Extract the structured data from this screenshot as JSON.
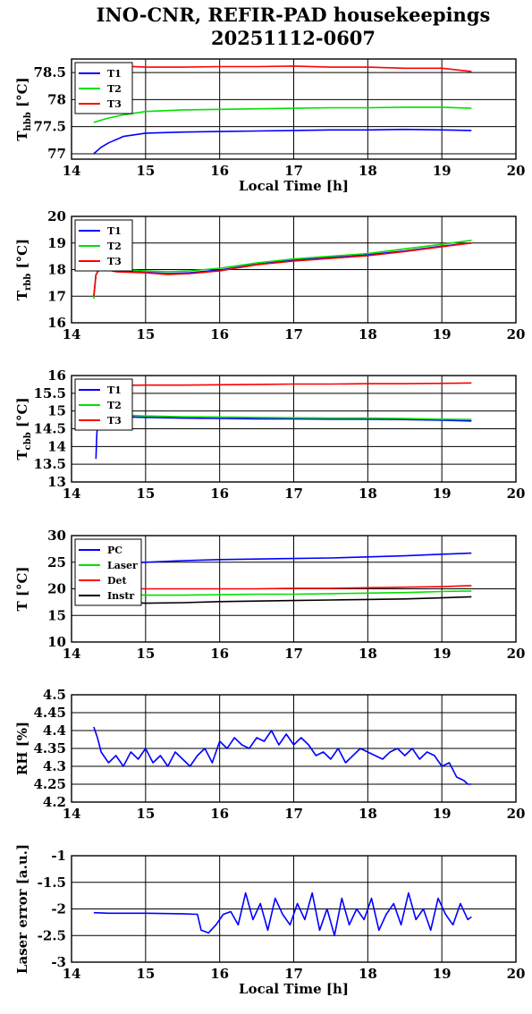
{
  "title_line1": "INO-CNR, REFIR-PAD housekeepings",
  "title_line2": "20251112-0607",
  "chart_data": [
    {
      "type": "line",
      "ylabel": "T_hbb [°C]",
      "ylabel_main": "T",
      "ylabel_sub": "hbb",
      "ylabel_rest": " [°C]",
      "xlabel": "Local Time [h]",
      "xlim": [
        14,
        20
      ],
      "ylim": [
        76.9,
        78.75
      ],
      "x_ticks": [
        "14",
        "15",
        "16",
        "17",
        "18",
        "19",
        "20"
      ],
      "y_ticks": [
        77,
        77.5,
        78,
        78.5
      ],
      "y_tick_labels": [
        "77",
        "77.5",
        "78",
        "78.5"
      ],
      "grid": true,
      "legend_position": "top-left",
      "series": [
        {
          "name": "T1",
          "color": "#0000ff",
          "x": [
            14.3,
            14.4,
            14.5,
            14.7,
            15.0,
            15.5,
            16.0,
            16.5,
            17.0,
            17.5,
            18.0,
            18.5,
            19.0,
            19.4
          ],
          "y": [
            77.0,
            77.12,
            77.2,
            77.32,
            77.38,
            77.4,
            77.41,
            77.42,
            77.43,
            77.44,
            77.44,
            77.45,
            77.44,
            77.43
          ]
        },
        {
          "name": "T2",
          "color": "#00e000",
          "x": [
            14.3,
            14.4,
            14.5,
            14.7,
            15.0,
            15.5,
            16.0,
            16.5,
            17.0,
            17.5,
            18.0,
            18.5,
            19.0,
            19.4
          ],
          "y": [
            77.58,
            77.62,
            77.66,
            77.72,
            77.78,
            77.81,
            77.82,
            77.83,
            77.84,
            77.85,
            77.85,
            77.86,
            77.86,
            77.84
          ]
        },
        {
          "name": "T3",
          "color": "#ff0000",
          "x": [
            14.3,
            14.5,
            14.7,
            15.0,
            15.5,
            16.0,
            16.5,
            17.0,
            17.5,
            18.0,
            18.5,
            19.0,
            19.4
          ],
          "y": [
            78.6,
            78.62,
            78.62,
            78.6,
            78.6,
            78.61,
            78.61,
            78.62,
            78.6,
            78.6,
            78.58,
            78.58,
            78.52
          ]
        }
      ]
    },
    {
      "type": "line",
      "ylabel": "T_rbb [°C]",
      "ylabel_main": "T",
      "ylabel_sub": "rbb",
      "ylabel_rest": " [°C]",
      "xlabel": "",
      "xlim": [
        14,
        20
      ],
      "ylim": [
        16,
        20
      ],
      "x_ticks": [
        "14",
        "15",
        "16",
        "17",
        "18",
        "19",
        "20"
      ],
      "y_ticks": [
        16,
        17,
        18,
        19,
        20
      ],
      "y_tick_labels": [
        "16",
        "17",
        "18",
        "19",
        "20"
      ],
      "grid": true,
      "legend_position": "top-left",
      "series": [
        {
          "name": "T1",
          "color": "#0000ff",
          "x": [
            14.3,
            14.33,
            14.38,
            14.6,
            15.0,
            15.3,
            15.6,
            16.0,
            16.5,
            17.0,
            17.5,
            18.0,
            18.5,
            19.0,
            19.4
          ],
          "y": [
            17.0,
            17.8,
            18.05,
            17.95,
            17.9,
            17.85,
            17.88,
            17.98,
            18.2,
            18.35,
            18.45,
            18.55,
            18.7,
            18.88,
            19.0
          ]
        },
        {
          "name": "T2",
          "color": "#00e000",
          "x": [
            14.3,
            14.33,
            14.38,
            14.6,
            15.0,
            15.3,
            15.6,
            16.0,
            16.5,
            17.0,
            17.5,
            18.0,
            18.5,
            19.0,
            19.4
          ],
          "y": [
            16.9,
            17.8,
            18.05,
            18.0,
            17.95,
            17.92,
            17.95,
            18.05,
            18.25,
            18.4,
            18.5,
            18.6,
            18.78,
            18.95,
            19.1
          ]
        },
        {
          "name": "T3",
          "color": "#ff0000",
          "x": [
            14.3,
            14.33,
            14.38,
            14.6,
            15.0,
            15.3,
            15.6,
            16.0,
            16.5,
            17.0,
            17.5,
            18.0,
            18.5,
            19.0,
            19.4
          ],
          "y": [
            17.0,
            17.8,
            18.05,
            17.92,
            17.88,
            17.82,
            17.85,
            17.95,
            18.18,
            18.32,
            18.42,
            18.52,
            18.68,
            18.86,
            19.0
          ]
        }
      ]
    },
    {
      "type": "line",
      "ylabel": "T_cbb [°C]",
      "ylabel_main": "T",
      "ylabel_sub": "cbb",
      "ylabel_rest": " [°C]",
      "xlabel": "",
      "xlim": [
        14,
        20
      ],
      "ylim": [
        13,
        16
      ],
      "x_ticks": [
        "14",
        "15",
        "16",
        "17",
        "18",
        "19",
        "20"
      ],
      "y_ticks": [
        13,
        13.5,
        14,
        14.5,
        15,
        15.5,
        16
      ],
      "y_tick_labels": [
        "13",
        "13.5",
        "14",
        "14.5",
        "15",
        "15.5",
        "16"
      ],
      "grid": true,
      "legend_position": "top-left",
      "series": [
        {
          "name": "T1",
          "color": "#0000ff",
          "x": [
            14.33,
            14.34,
            14.36,
            14.5,
            15.0,
            15.5,
            16.0,
            16.5,
            17.0,
            17.5,
            18.0,
            18.5,
            19.0,
            19.4
          ],
          "y": [
            13.65,
            14.3,
            14.9,
            14.85,
            14.82,
            14.8,
            14.79,
            14.78,
            14.78,
            14.77,
            14.77,
            14.76,
            14.74,
            14.72
          ]
        },
        {
          "name": "T2",
          "color": "#00e000",
          "x": [
            14.5,
            15.0,
            15.5,
            16.0,
            16.5,
            17.0,
            17.5,
            18.0,
            18.5,
            19.0,
            19.4
          ],
          "y": [
            14.9,
            14.86,
            14.84,
            14.83,
            14.82,
            14.81,
            14.8,
            14.8,
            14.79,
            14.77,
            14.76
          ]
        },
        {
          "name": "T3",
          "color": "#ff0000",
          "x": [
            14.5,
            15.0,
            15.5,
            16.0,
            16.5,
            17.0,
            17.5,
            18.0,
            18.5,
            19.0,
            19.4
          ],
          "y": [
            15.72,
            15.73,
            15.73,
            15.74,
            15.75,
            15.76,
            15.76,
            15.77,
            15.77,
            15.78,
            15.79
          ]
        }
      ]
    },
    {
      "type": "line",
      "ylabel": "T [°C]",
      "ylabel_main": "T [°C]",
      "ylabel_sub": "",
      "ylabel_rest": "",
      "xlabel": "",
      "xlim": [
        14,
        20
      ],
      "ylim": [
        10,
        30
      ],
      "x_ticks": [
        "14",
        "15",
        "16",
        "17",
        "18",
        "19",
        "20"
      ],
      "y_ticks": [
        10,
        15,
        20,
        25,
        30
      ],
      "y_tick_labels": [
        "10",
        "15",
        "20",
        "25",
        "30"
      ],
      "grid": true,
      "legend_position": "top-left",
      "series": [
        {
          "name": "PC",
          "color": "#0000ff",
          "x": [
            14.3,
            15.0,
            15.5,
            16.0,
            16.5,
            17.0,
            17.5,
            18.0,
            18.5,
            19.0,
            19.4
          ],
          "y": [
            24.6,
            25.0,
            25.3,
            25.5,
            25.6,
            25.7,
            25.8,
            26.0,
            26.2,
            26.5,
            26.7
          ]
        },
        {
          "name": "Laser",
          "color": "#00e000",
          "x": [
            14.3,
            15.0,
            15.5,
            16.0,
            16.5,
            17.0,
            17.5,
            18.0,
            18.5,
            19.0,
            19.4
          ],
          "y": [
            19.3,
            18.8,
            18.8,
            18.9,
            19.0,
            19.0,
            19.1,
            19.2,
            19.3,
            19.5,
            19.6
          ]
        },
        {
          "name": "Det",
          "color": "#ff0000",
          "x": [
            14.3,
            15.0,
            15.5,
            16.0,
            16.5,
            17.0,
            17.5,
            18.0,
            18.5,
            19.0,
            19.4
          ],
          "y": [
            20.0,
            20.0,
            20.0,
            20.0,
            20.0,
            20.1,
            20.1,
            20.2,
            20.3,
            20.4,
            20.6
          ]
        },
        {
          "name": "Instr",
          "color": "#000000",
          "x": [
            14.3,
            14.7,
            15.0,
            15.5,
            16.0,
            16.5,
            17.0,
            17.5,
            18.0,
            18.5,
            19.0,
            19.4
          ],
          "y": [
            17.8,
            17.5,
            17.3,
            17.4,
            17.6,
            17.7,
            17.8,
            17.9,
            18.0,
            18.1,
            18.3,
            18.5
          ]
        }
      ]
    },
    {
      "type": "line",
      "ylabel": "RH [%]",
      "ylabel_main": "RH [%]",
      "ylabel_sub": "",
      "ylabel_rest": "",
      "xlabel": "",
      "xlim": [
        14,
        20
      ],
      "ylim": [
        4.2,
        4.5
      ],
      "x_ticks": [
        "14",
        "15",
        "16",
        "17",
        "18",
        "19",
        "20"
      ],
      "y_ticks": [
        4.2,
        4.25,
        4.3,
        4.35,
        4.4,
        4.45,
        4.5
      ],
      "y_tick_labels": [
        "4.2",
        "4.25",
        "4.3",
        "4.35",
        "4.4",
        "4.45",
        "4.5"
      ],
      "grid": true,
      "legend_position": "none",
      "series": [
        {
          "name": "",
          "color": "#0000ff",
          "x": [
            14.3,
            14.35,
            14.4,
            14.5,
            14.6,
            14.7,
            14.8,
            14.9,
            15.0,
            15.1,
            15.2,
            15.3,
            15.4,
            15.5,
            15.6,
            15.7,
            15.8,
            15.9,
            16.0,
            16.1,
            16.2,
            16.3,
            16.4,
            16.5,
            16.6,
            16.7,
            16.8,
            16.9,
            17.0,
            17.1,
            17.2,
            17.3,
            17.4,
            17.5,
            17.6,
            17.7,
            17.8,
            17.9,
            18.0,
            18.1,
            18.2,
            18.3,
            18.4,
            18.5,
            18.6,
            18.7,
            18.8,
            18.9,
            19.0,
            19.1,
            19.2,
            19.3,
            19.35,
            19.4
          ],
          "y": [
            4.41,
            4.38,
            4.34,
            4.31,
            4.33,
            4.3,
            4.34,
            4.32,
            4.35,
            4.31,
            4.33,
            4.3,
            4.34,
            4.32,
            4.3,
            4.33,
            4.35,
            4.31,
            4.37,
            4.35,
            4.38,
            4.36,
            4.35,
            4.38,
            4.37,
            4.4,
            4.36,
            4.39,
            4.36,
            4.38,
            4.36,
            4.33,
            4.34,
            4.32,
            4.35,
            4.31,
            4.33,
            4.35,
            4.34,
            4.33,
            4.32,
            4.34,
            4.35,
            4.33,
            4.35,
            4.32,
            4.34,
            4.33,
            4.3,
            4.31,
            4.27,
            4.26,
            4.25,
            4.25
          ]
        }
      ]
    },
    {
      "type": "line",
      "ylabel": "Laser error [a.u.]",
      "ylabel_main": "Laser error [a.u.]",
      "ylabel_sub": "",
      "ylabel_rest": "",
      "xlabel": "Local Time [h]",
      "xlim": [
        14,
        20
      ],
      "ylim": [
        -3,
        -1
      ],
      "x_ticks": [
        "14",
        "15",
        "16",
        "17",
        "18",
        "19",
        "20"
      ],
      "y_ticks": [
        -3,
        -2.5,
        -2,
        -1.5,
        -1
      ],
      "y_tick_labels": [
        "-3",
        "-2.5",
        "-2",
        "-1.5",
        "-1"
      ],
      "grid": true,
      "legend_position": "none",
      "series": [
        {
          "name": "",
          "color": "#0000ff",
          "x": [
            14.3,
            14.5,
            15.0,
            15.5,
            15.7,
            15.75,
            15.85,
            15.95,
            16.05,
            16.15,
            16.25,
            16.35,
            16.45,
            16.55,
            16.65,
            16.75,
            16.85,
            16.95,
            17.05,
            17.15,
            17.25,
            17.35,
            17.45,
            17.55,
            17.65,
            17.75,
            17.85,
            17.95,
            18.05,
            18.15,
            18.25,
            18.35,
            18.45,
            18.55,
            18.65,
            18.75,
            18.85,
            18.95,
            19.05,
            19.15,
            19.25,
            19.35,
            19.4
          ],
          "y": [
            -2.07,
            -2.08,
            -2.08,
            -2.09,
            -2.1,
            -2.4,
            -2.45,
            -2.3,
            -2.1,
            -2.05,
            -2.3,
            -1.7,
            -2.2,
            -1.9,
            -2.4,
            -1.8,
            -2.1,
            -2.3,
            -1.9,
            -2.2,
            -1.7,
            -2.4,
            -2.0,
            -2.5,
            -1.8,
            -2.3,
            -2.0,
            -2.2,
            -1.8,
            -2.4,
            -2.1,
            -1.9,
            -2.3,
            -1.7,
            -2.2,
            -2.0,
            -2.4,
            -1.8,
            -2.1,
            -2.3,
            -1.9,
            -2.2,
            -2.15
          ]
        }
      ]
    }
  ]
}
